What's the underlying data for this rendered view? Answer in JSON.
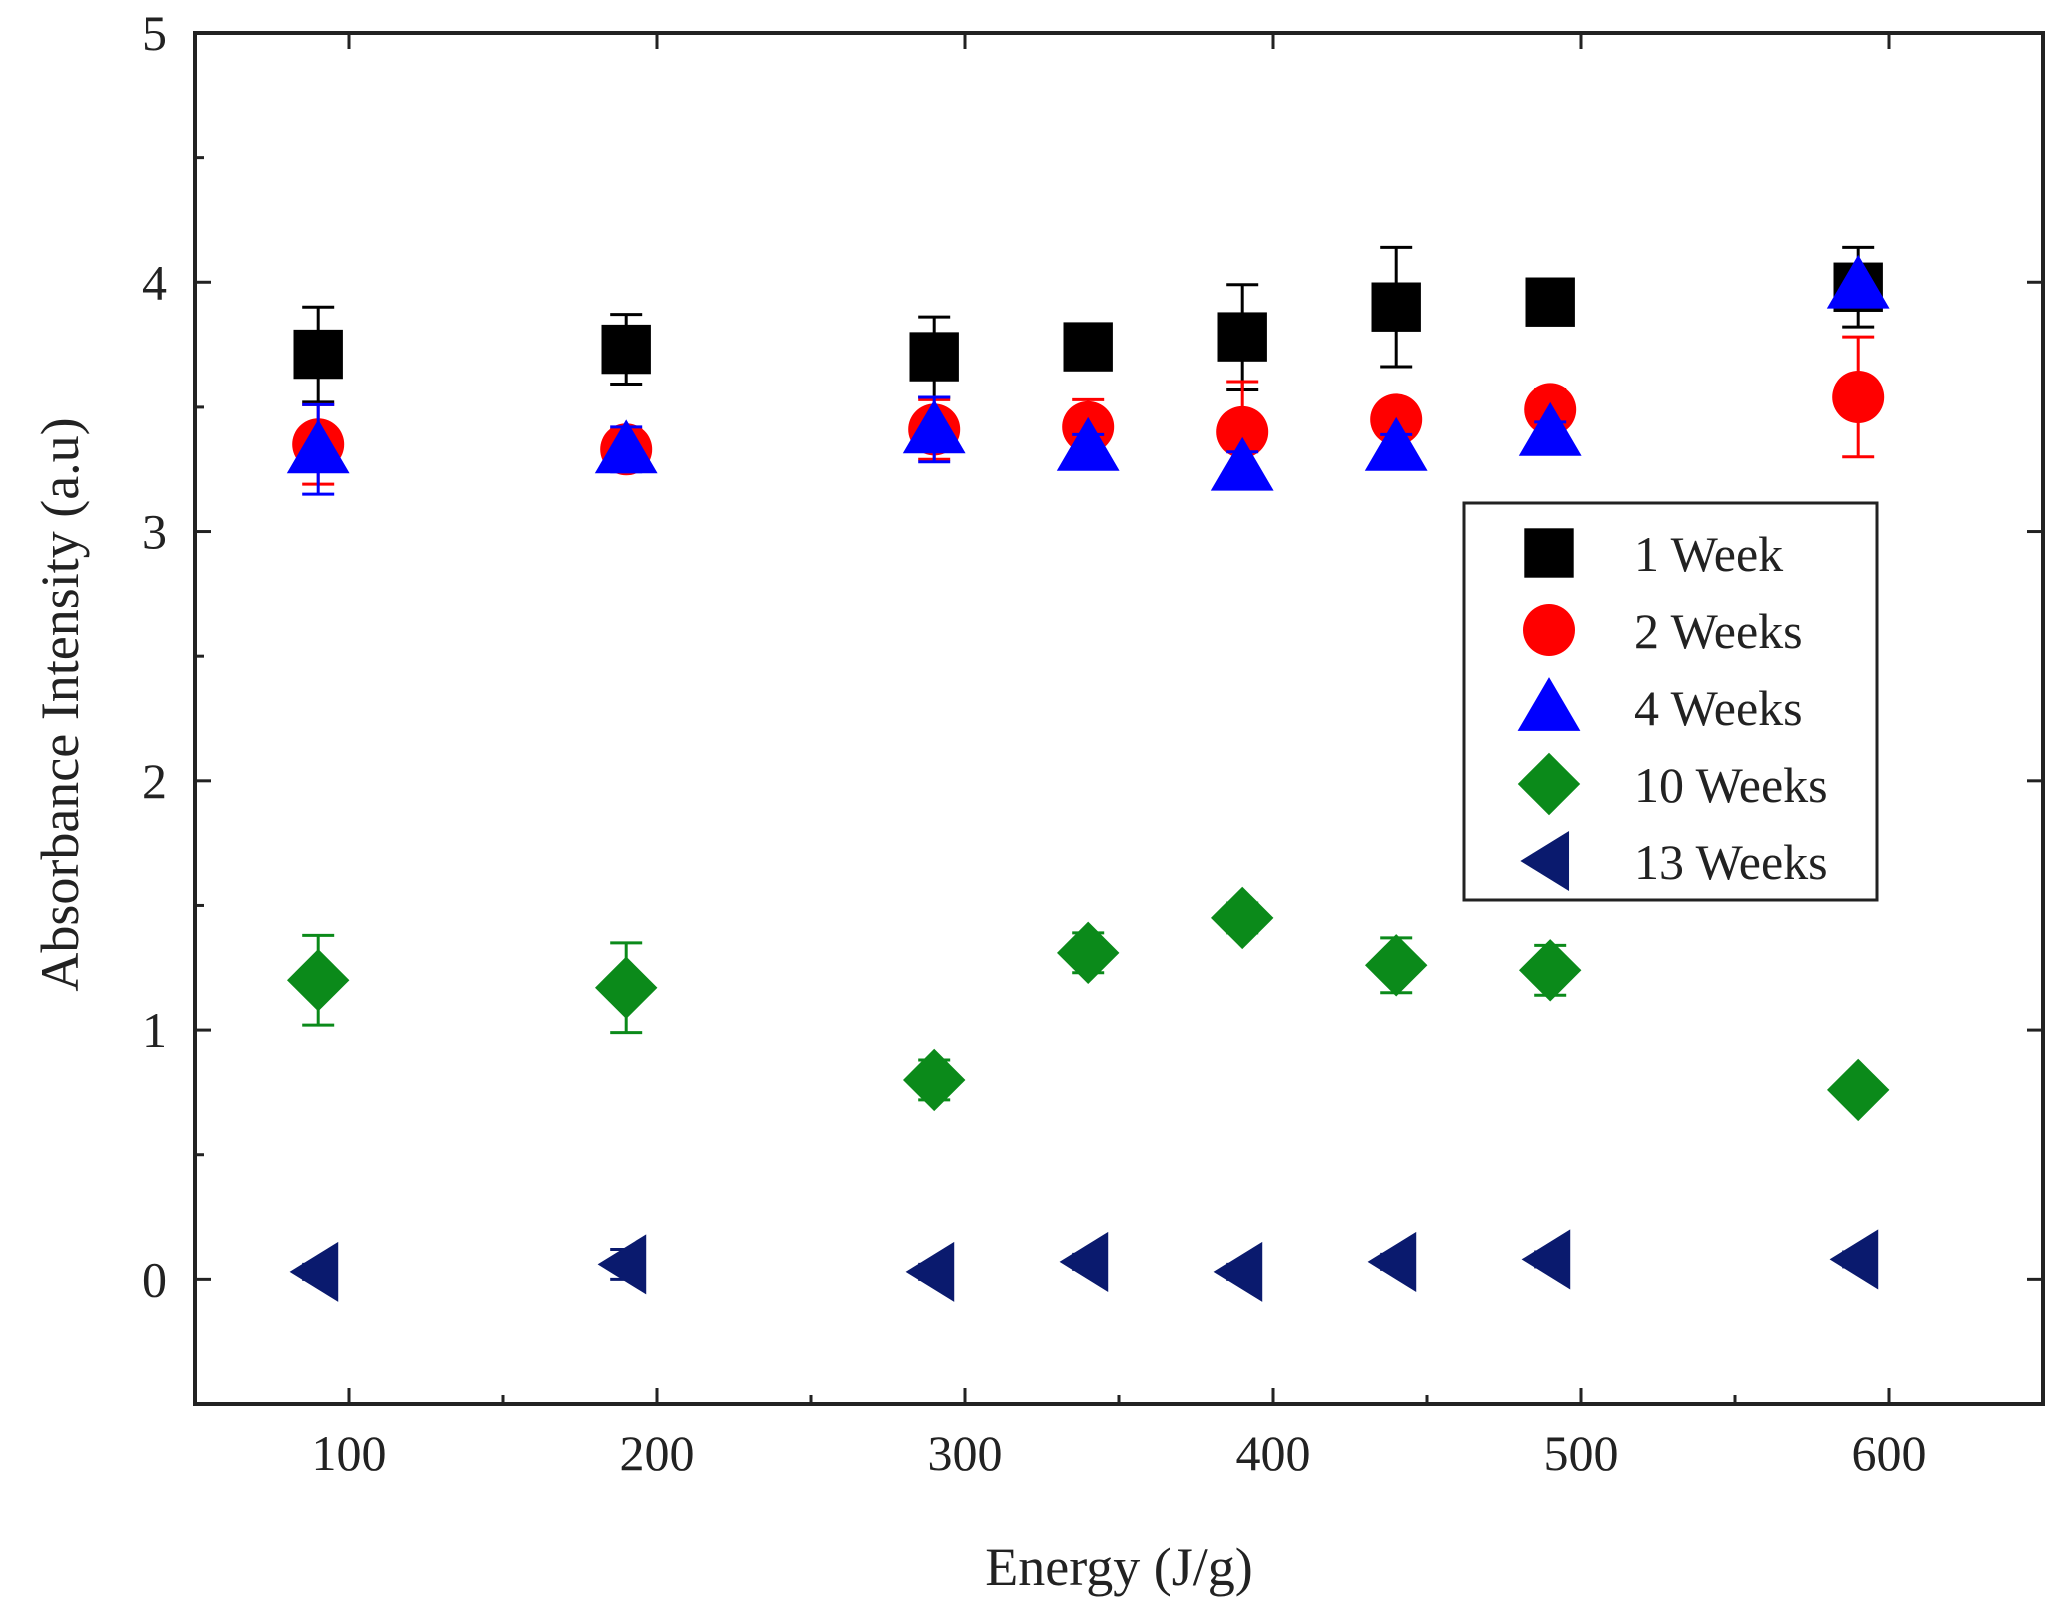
{
  "chart_data": {
    "type": "scatter",
    "xlabel": "Energy (J/g)",
    "ylabel": "Absorbance Intensity (a.u)",
    "xlim": [
      50,
      650
    ],
    "ylim": [
      -0.5,
      5
    ],
    "x_ticks": [
      100,
      200,
      300,
      400,
      500,
      600
    ],
    "x_tick_labels": [
      "100",
      "200",
      "300",
      "400",
      "500",
      "600"
    ],
    "y_ticks": [
      0,
      1,
      2,
      3,
      4,
      5
    ],
    "y_tick_labels": [
      "0",
      "1",
      "2",
      "3",
      "4",
      "5"
    ],
    "grid": false,
    "legend_position": "right",
    "series": [
      {
        "name": "1 Week",
        "marker": "square",
        "color": "#000000",
        "points": [
          {
            "x": 90,
            "y": 3.71,
            "err": 0.19
          },
          {
            "x": 190,
            "y": 3.73,
            "err": 0.14
          },
          {
            "x": 290,
            "y": 3.7,
            "err": 0.16
          },
          {
            "x": 340,
            "y": 3.74,
            "err": 0.07
          },
          {
            "x": 390,
            "y": 3.78,
            "err": 0.21
          },
          {
            "x": 440,
            "y": 3.9,
            "err": 0.24
          },
          {
            "x": 490,
            "y": 3.92,
            "err": 0.0
          },
          {
            "x": 590,
            "y": 3.98,
            "err": 0.16
          }
        ]
      },
      {
        "name": "2 Weeks",
        "marker": "circle",
        "color": "#ff0000",
        "points": [
          {
            "x": 90,
            "y": 3.35,
            "err": 0.16
          },
          {
            "x": 190,
            "y": 3.33,
            "err": 0.08
          },
          {
            "x": 290,
            "y": 3.41,
            "err": 0.12
          },
          {
            "x": 340,
            "y": 3.42,
            "err": 0.11
          },
          {
            "x": 390,
            "y": 3.4,
            "err": 0.2
          },
          {
            "x": 440,
            "y": 3.45,
            "err": 0.0
          },
          {
            "x": 490,
            "y": 3.49,
            "err": 0.08
          },
          {
            "x": 590,
            "y": 3.54,
            "err": 0.24
          }
        ]
      },
      {
        "name": "4 Weeks",
        "marker": "triangle-up",
        "color": "#0000ff",
        "points": [
          {
            "x": 90,
            "y": 3.33,
            "err": 0.18
          },
          {
            "x": 190,
            "y": 3.33,
            "err": 0.09
          },
          {
            "x": 290,
            "y": 3.41,
            "err": 0.13
          },
          {
            "x": 340,
            "y": 3.34,
            "err": 0.05
          },
          {
            "x": 390,
            "y": 3.26,
            "err": 0.06
          },
          {
            "x": 440,
            "y": 3.34,
            "err": 0.05
          },
          {
            "x": 490,
            "y": 3.4,
            "err": 0.04
          },
          {
            "x": 590,
            "y": 3.99,
            "err": 0.0
          }
        ]
      },
      {
        "name": "10 Weeks",
        "marker": "diamond",
        "color": "#0b8a1a",
        "points": [
          {
            "x": 90,
            "y": 1.2,
            "err": 0.18
          },
          {
            "x": 190,
            "y": 1.17,
            "err": 0.18
          },
          {
            "x": 290,
            "y": 0.8,
            "err": 0.08
          },
          {
            "x": 340,
            "y": 1.31,
            "err": 0.08
          },
          {
            "x": 390,
            "y": 1.45,
            "err": 0.06
          },
          {
            "x": 440,
            "y": 1.26,
            "err": 0.11
          },
          {
            "x": 490,
            "y": 1.24,
            "err": 0.1
          },
          {
            "x": 590,
            "y": 0.76,
            "err": 0.0
          }
        ]
      },
      {
        "name": "13 Weeks",
        "marker": "triangle-left",
        "color": "#0a1a6e",
        "points": [
          {
            "x": 90,
            "y": 0.03,
            "err": 0.03
          },
          {
            "x": 190,
            "y": 0.06,
            "err": 0.06
          },
          {
            "x": 290,
            "y": 0.03,
            "err": 0.03
          },
          {
            "x": 340,
            "y": 0.07,
            "err": 0.03
          },
          {
            "x": 390,
            "y": 0.03,
            "err": 0.03
          },
          {
            "x": 440,
            "y": 0.07,
            "err": 0.03
          },
          {
            "x": 490,
            "y": 0.08,
            "err": 0.03
          },
          {
            "x": 590,
            "y": 0.08,
            "err": 0.03
          }
        ]
      }
    ]
  }
}
